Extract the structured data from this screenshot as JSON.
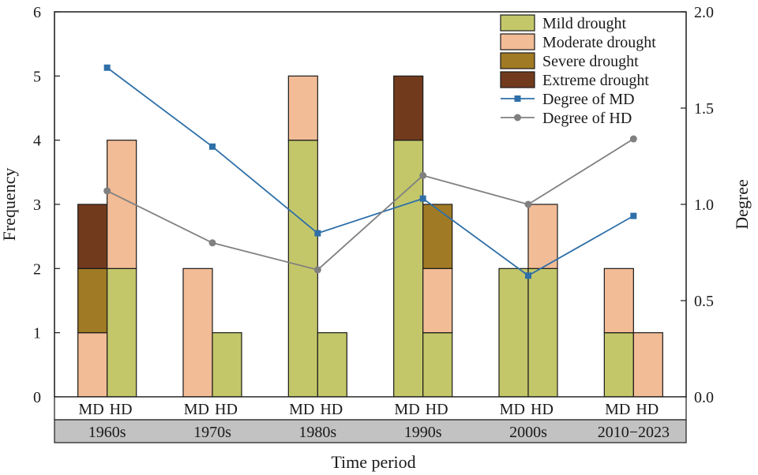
{
  "chart_data": {
    "type": "bar",
    "subtype": "stacked bar with dual-axis lines",
    "title": "",
    "xlabel": "Time period",
    "ylabel_left": "Frequency",
    "ylabel_right": "Degree",
    "ylim_left": [
      0,
      6
    ],
    "ylim_right": [
      0.0,
      2.0
    ],
    "yticks_left": [
      "0",
      "1",
      "2",
      "3",
      "4",
      "5",
      "6"
    ],
    "yticks_right": [
      "0.0",
      "0.5",
      "1.0",
      "1.5",
      "2.0"
    ],
    "grid": false,
    "legend_position": "top-right",
    "periods": [
      "1960s",
      "1970s",
      "1980s",
      "1990s",
      "2000s",
      "2010−2023"
    ],
    "groups": [
      "MD",
      "HD"
    ],
    "bar_series": [
      {
        "name": "Mild drought",
        "color": "#c3c769",
        "MD": [
          0,
          0,
          4,
          4,
          2,
          1
        ],
        "HD": [
          2,
          1,
          1,
          1,
          2,
          0
        ]
      },
      {
        "name": "Moderate drought",
        "color": "#f2bc96",
        "MD": [
          1,
          2,
          1,
          0,
          0,
          1
        ],
        "HD": [
          2,
          0,
          0,
          1,
          1,
          1
        ]
      },
      {
        "name": "Severe drought",
        "color": "#a07a24",
        "MD": [
          1,
          0,
          0,
          0,
          0,
          0
        ],
        "HD": [
          0,
          0,
          0,
          1,
          0,
          0
        ]
      },
      {
        "name": "Extreme drought",
        "color": "#723a1d",
        "MD": [
          1,
          0,
          0,
          1,
          0,
          0
        ],
        "HD": [
          0,
          0,
          0,
          0,
          0,
          0
        ]
      }
    ],
    "line_series": [
      {
        "name": "Degree of MD",
        "color": "#2e6fa8",
        "marker": "square",
        "values": [
          1.71,
          1.3,
          0.85,
          1.03,
          0.63,
          0.94
        ]
      },
      {
        "name": "Degree of HD",
        "color": "#808080",
        "marker": "circle",
        "values": [
          1.07,
          0.8,
          0.66,
          1.15,
          1.0,
          1.34
        ]
      }
    ]
  }
}
